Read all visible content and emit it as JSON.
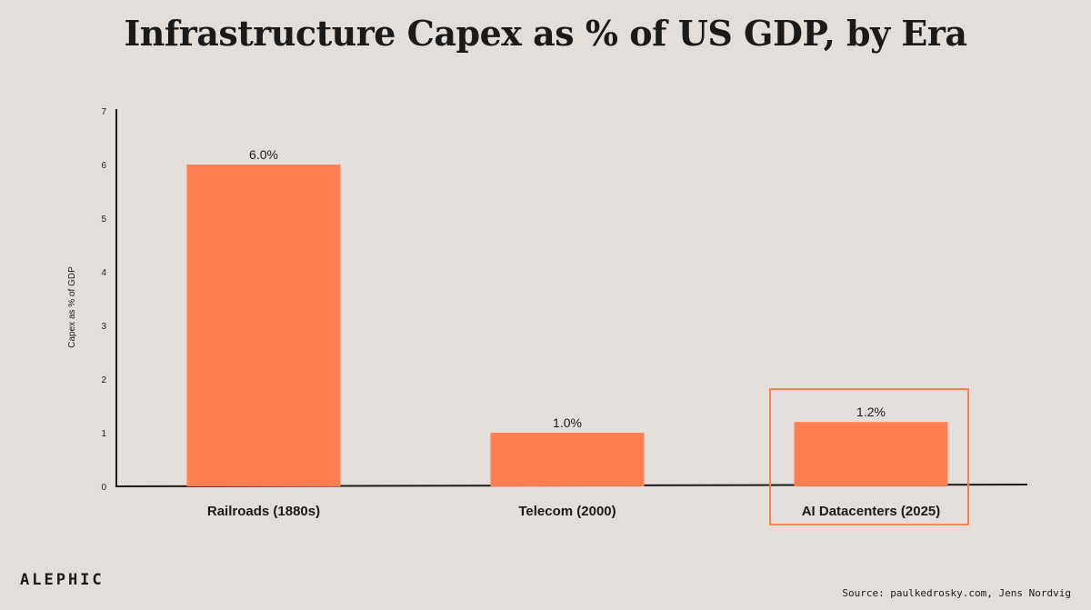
{
  "page": {
    "brand": "ALEPHIC",
    "source": "Source: paulkedrosky.com, Jens Nordvig"
  },
  "colors": {
    "background": "#e3deda",
    "bar": "#ff7f50",
    "highlight_outline": "#ff7f50",
    "axis": "#1a1a1a",
    "text": "#1a1a1a"
  },
  "chart_data": {
    "type": "bar",
    "title": "Infrastructure Capex as % of US GDP, by Era",
    "xlabel": "",
    "ylabel": "Capex as % of GDP",
    "categories": [
      "Railroads (1880s)",
      "Telecom (2000)",
      "AI Datacenters (2025)"
    ],
    "values": [
      6.0,
      1.0,
      1.2
    ],
    "data_labels": [
      "6.0%",
      "1.0%",
      "1.2%"
    ],
    "ylim": [
      0,
      7
    ],
    "yticks": [
      "0",
      "1",
      "2",
      "3",
      "4",
      "5",
      "6",
      "7"
    ],
    "grid": false,
    "highlighted_category": "AI Datacenters (2025)"
  }
}
